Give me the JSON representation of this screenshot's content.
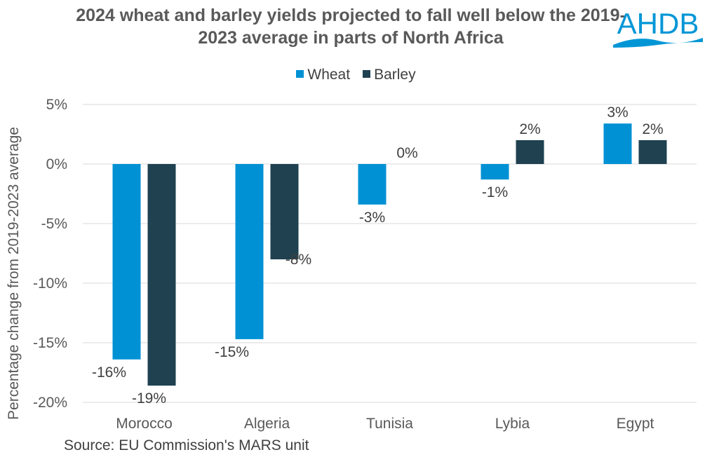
{
  "chart_data": {
    "type": "bar",
    "title": "2024 wheat and barley yields projected to fall well below the 2019-2023 average in parts of North Africa",
    "ylabel": "Percentage change from 2019-2023 average",
    "xlabel": "",
    "categories": [
      "Morocco",
      "Algeria",
      "Tunisia",
      "Lybia",
      "Egypt"
    ],
    "series": [
      {
        "name": "Wheat",
        "color": "#0091D5",
        "values": [
          -16.4,
          -14.7,
          -3.4,
          -1.3,
          3.4
        ],
        "labels": [
          "-16%",
          "-15%",
          "-3%",
          "-1%",
          "3%"
        ]
      },
      {
        "name": "Barley",
        "color": "#1F4150",
        "values": [
          -18.6,
          -8.0,
          0,
          2.0,
          2.0
        ],
        "labels": [
          "-19%",
          "-8%",
          "0%",
          "2%",
          "2%"
        ]
      }
    ],
    "ylim": [
      -20,
      5
    ],
    "yticks": [
      "5%",
      "0%",
      "-5%",
      "-10%",
      "-15%",
      "-20%"
    ],
    "ytick_values": [
      5,
      0,
      -5,
      -10,
      -15,
      -20
    ],
    "grid": true,
    "legend_position": "top-center"
  },
  "source": "Source: EU Commission's MARS unit",
  "logo": "AHDB"
}
